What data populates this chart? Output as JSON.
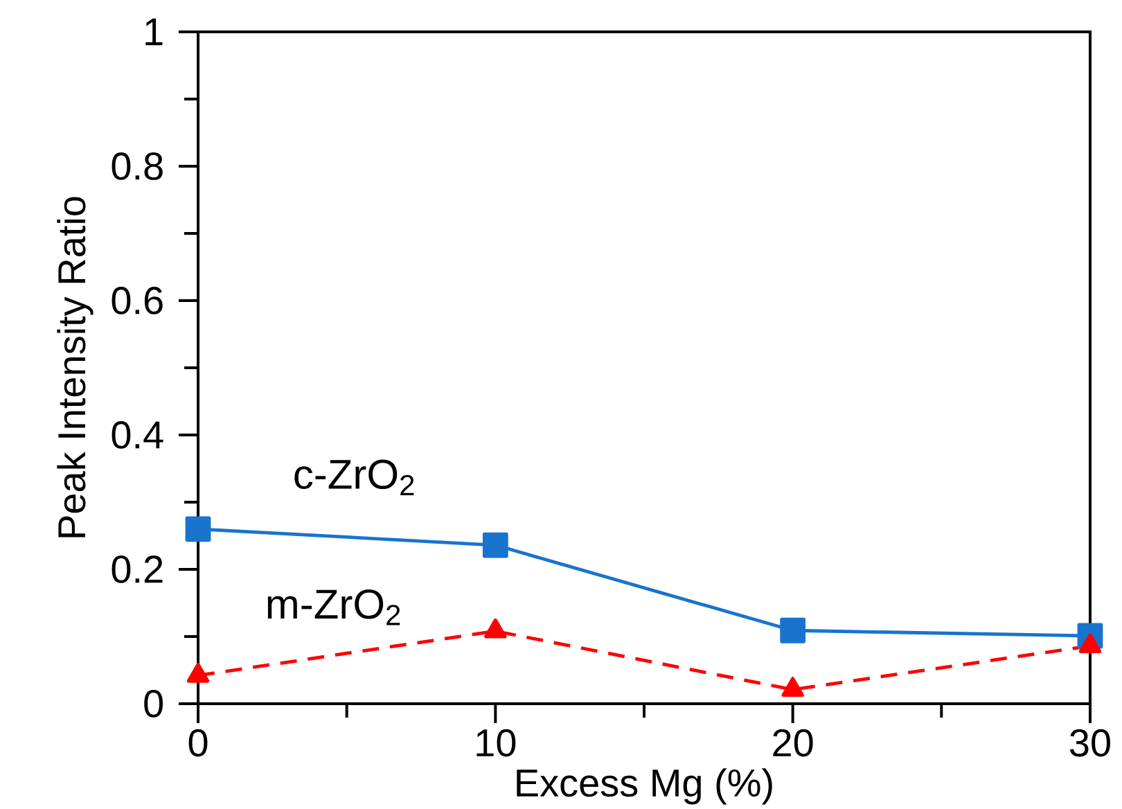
{
  "chart_data": {
    "type": "line",
    "xlabel": "Excess Mg (%)",
    "ylabel": "Peak Intensity Ratio",
    "x": [
      0,
      10,
      20,
      30
    ],
    "series": [
      {
        "name": "c-ZrO$_{2}$",
        "color": "#1874cd",
        "values": [
          0.26,
          0.236,
          0.109,
          0.101
        ],
        "marker": "square",
        "line_style": "solid"
      },
      {
        "name": "m-ZrO$_{2}$",
        "color": "#ff0000",
        "values": [
          0.042,
          0.108,
          0.021,
          0.086
        ],
        "marker": "triangle",
        "line_style": "dashed"
      }
    ],
    "xlim": [
      0,
      30
    ],
    "xticks": [
      0,
      10,
      20,
      30
    ],
    "ylim": [
      0,
      1
    ],
    "yticks": [
      0,
      0.2,
      0.4,
      0.6,
      0.8,
      1
    ],
    "grid": false,
    "legend": false
  }
}
